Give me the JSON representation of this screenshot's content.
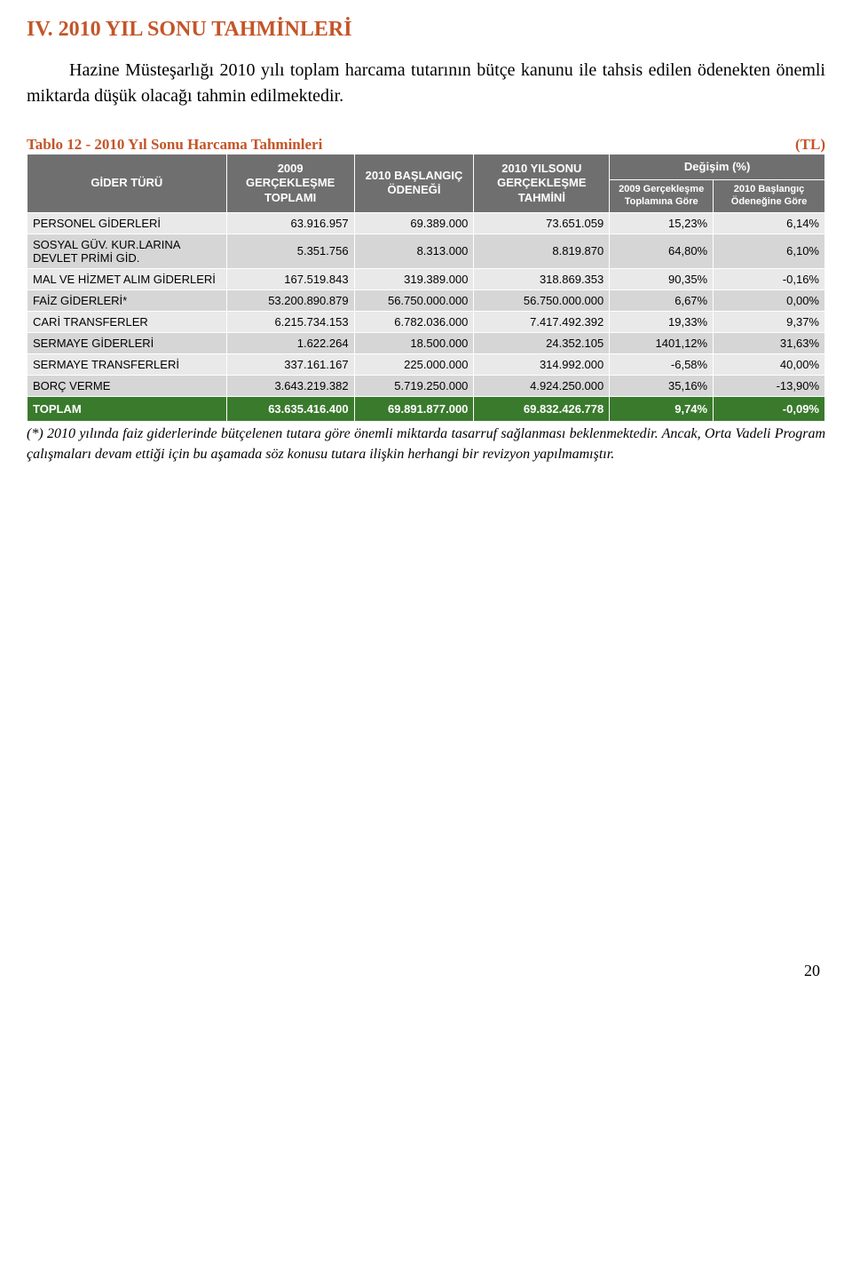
{
  "heading": "IV. 2010 YIL SONU TAHMİNLERİ",
  "intro": "Hazine Müsteşarlığı 2010 yılı toplam harcama tutarının bütçe kanunu ile tahsis edilen ödenekten önemli miktarda düşük olacağı tahmin edilmektedir.",
  "table": {
    "caption": "Tablo 12 - 2010 Yıl Sonu Harcama Tahminleri",
    "unit": "(TL)",
    "header": {
      "col0": "GİDER TÜRÜ",
      "col1": "2009 GERÇEKLEŞME TOPLAMI",
      "col2": "2010 BAŞLANGIÇ ÖDENEĞİ",
      "col3": "2010 YILSONU GERÇEKLEŞME TAHMİNİ",
      "degisim": "Değişim (%)",
      "sub1": "2009 Gerçekleşme Toplamına Göre",
      "sub2": "2010 Başlangıç Ödeneğine Göre"
    },
    "rows": [
      {
        "label": "PERSONEL GİDERLERİ",
        "c1": "63.916.957",
        "c2": "69.389.000",
        "c3": "73.651.059",
        "c4": "15,23%",
        "c5": "6,14%"
      },
      {
        "label": "SOSYAL GÜV. KUR.LARINA DEVLET PRİMİ GİD.",
        "c1": "5.351.756",
        "c2": "8.313.000",
        "c3": "8.819.870",
        "c4": "64,80%",
        "c5": "6,10%"
      },
      {
        "label": "MAL VE HİZMET ALIM GİDERLERİ",
        "c1": "167.519.843",
        "c2": "319.389.000",
        "c3": "318.869.353",
        "c4": "90,35%",
        "c5": "-0,16%"
      },
      {
        "label": "FAİZ  GİDERLERİ*",
        "c1": "53.200.890.879",
        "c2": "56.750.000.000",
        "c3": "56.750.000.000",
        "c4": "6,67%",
        "c5": "0,00%"
      },
      {
        "label": "CARİ TRANSFERLER",
        "c1": "6.215.734.153",
        "c2": "6.782.036.000",
        "c3": "7.417.492.392",
        "c4": "19,33%",
        "c5": "9,37%"
      },
      {
        "label": "SERMAYE GİDERLERİ",
        "c1": "1.622.264",
        "c2": "18.500.000",
        "c3": "24.352.105",
        "c4": "1401,12%",
        "c5": "31,63%"
      },
      {
        "label": "SERMAYE TRANSFERLERİ",
        "c1": "337.161.167",
        "c2": "225.000.000",
        "c3": "314.992.000",
        "c4": "-6,58%",
        "c5": "40,00%"
      },
      {
        "label": "BORÇ VERME",
        "c1": "3.643.219.382",
        "c2": "5.719.250.000",
        "c3": "4.924.250.000",
        "c4": "35,16%",
        "c5": "-13,90%"
      }
    ],
    "total": {
      "label": "TOPLAM",
      "c1": "63.635.416.400",
      "c2": "69.891.877.000",
      "c3": "69.832.426.778",
      "c4": "9,74%",
      "c5": "-0,09%"
    },
    "col_widths": [
      "25%",
      "16%",
      "15%",
      "17%",
      "13%",
      "14%"
    ],
    "colors": {
      "header_bg": "#6f6f6f",
      "header_fg": "#ffffff",
      "band_a": "#e9e9e9",
      "band_b": "#d6d6d6",
      "total_bg": "#3a7a2d",
      "total_fg": "#ffffff",
      "accent": "#c45528"
    }
  },
  "footnote": "(*) 2010 yılında faiz giderlerinde bütçelenen tutara göre önemli miktarda tasarruf sağlanması beklenmektedir. Ancak, Orta Vadeli Program çalışmaları devam ettiği için bu aşamada  söz konusu tutara ilişkin herhangi bir revizyon yapılmamıştır.",
  "page_number": "20"
}
